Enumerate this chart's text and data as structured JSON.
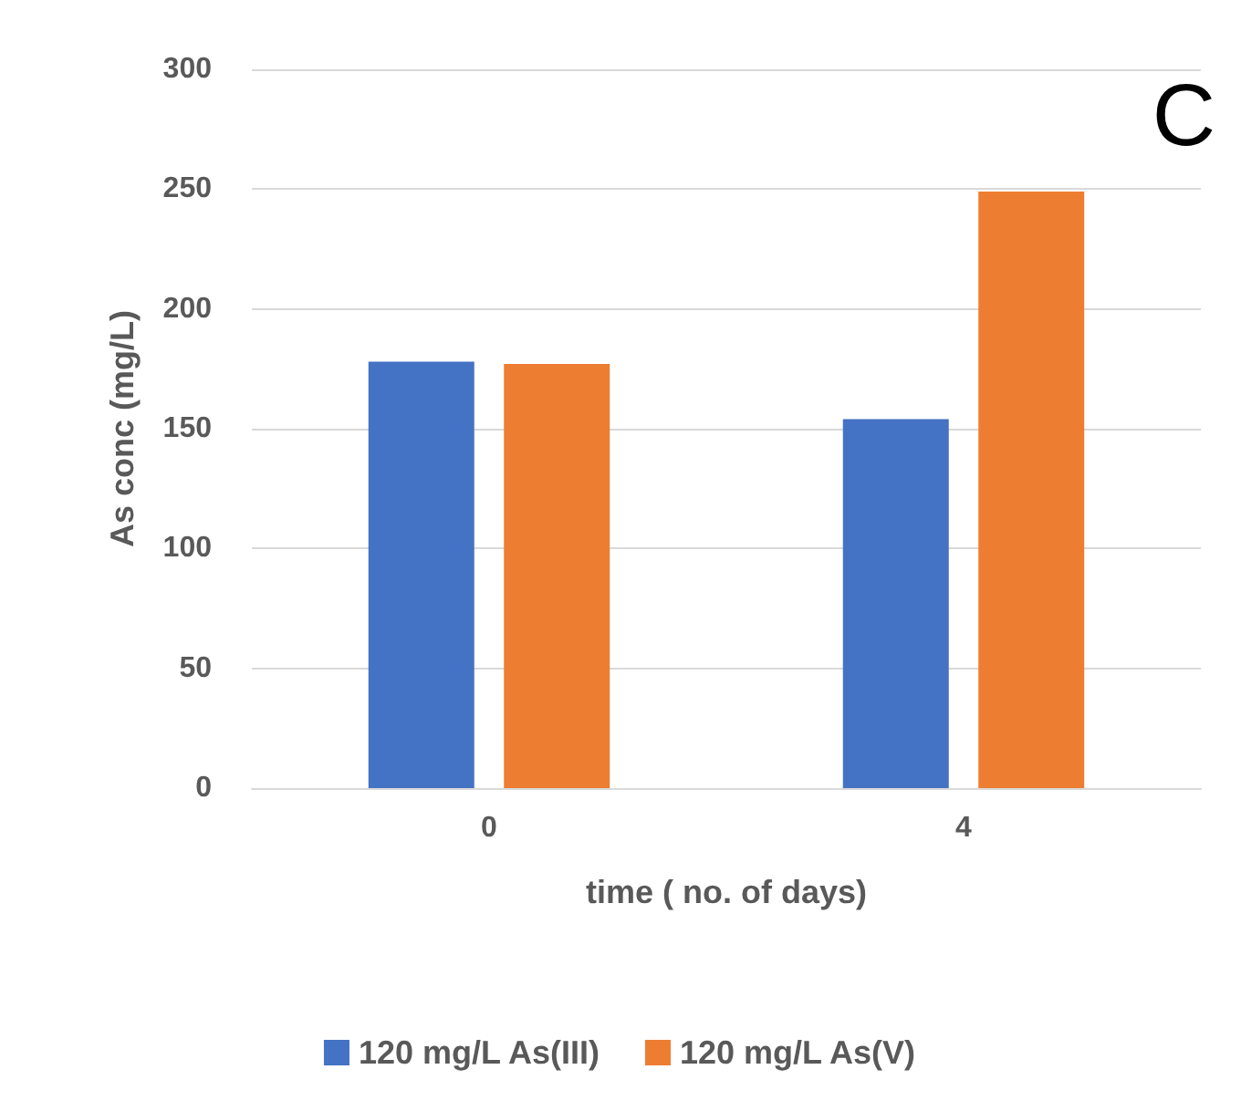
{
  "chart_data": {
    "type": "bar",
    "xlabel": "time ( no. of days)",
    "ylabel": "As conc (mg/L)",
    "annotations": [
      "C"
    ],
    "categories": [
      "0",
      "4"
    ],
    "series": [
      {
        "name": "120 mg/L As(III)",
        "color": "#4472c4",
        "values": [
          178,
          154
        ]
      },
      {
        "name": "120 mg/L As(V)",
        "color": "#ed7d31",
        "values": [
          177,
          249
        ]
      }
    ],
    "ylim": [
      0,
      300
    ],
    "yticks": [
      0,
      50,
      100,
      150,
      200,
      250,
      300
    ],
    "grid": "y",
    "legend": "bottom"
  }
}
